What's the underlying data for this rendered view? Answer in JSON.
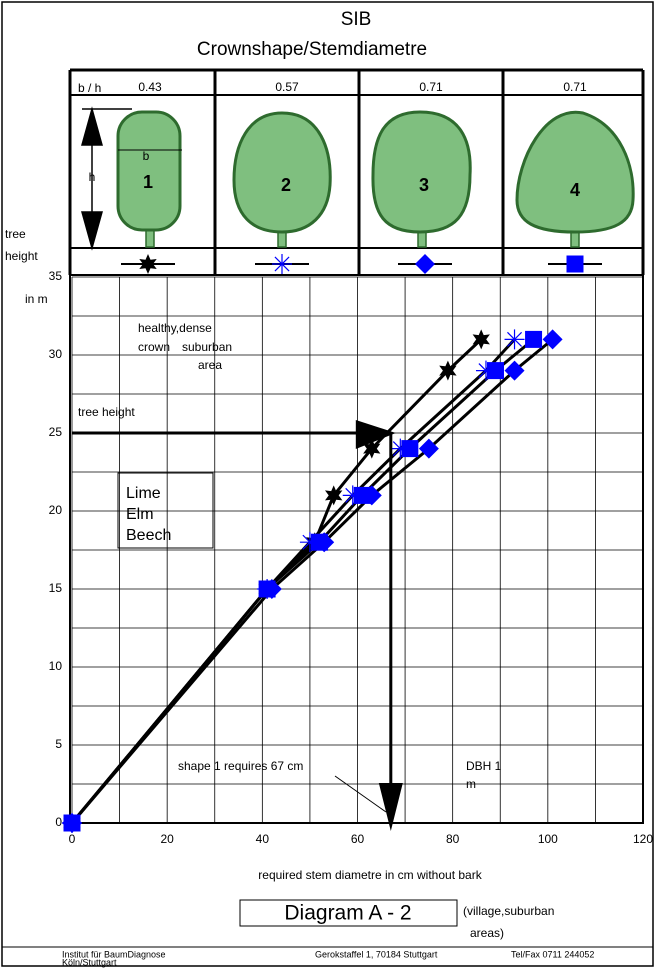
{
  "chart_data": {
    "type": "line",
    "title": "SIB",
    "subtitle": "Crownshape/Stemdiametre",
    "ratio_label": "b / h",
    "width_label": "b",
    "height_label": "h",
    "y_label": [
      "tree",
      "height",
      "in m"
    ],
    "x_label": "required stem diametre in cm without bark",
    "series": [
      {
        "name": "1",
        "ratio": 0.43,
        "marker": "star",
        "color": "#000000",
        "x": [
          0,
          41,
          51,
          55,
          63,
          79,
          86
        ],
        "values": [
          0,
          15,
          18,
          21,
          24,
          29,
          31
        ]
      },
      {
        "name": "2",
        "ratio": 0.57,
        "marker": "asterisk",
        "color": "#0000ff",
        "x": [
          0,
          41,
          50,
          59,
          69,
          87,
          93
        ],
        "values": [
          0,
          15,
          18,
          21,
          24,
          29,
          31
        ]
      },
      {
        "name": "3",
        "ratio": 0.71,
        "marker": "diamond",
        "color": "#0000ff",
        "x": [
          0,
          42,
          53,
          63,
          75,
          93,
          101
        ],
        "values": [
          0,
          15,
          18,
          21,
          24,
          29,
          31
        ]
      },
      {
        "name": "4",
        "ratio": 0.71,
        "marker": "square",
        "color": "#0000ff",
        "x": [
          0,
          41,
          52,
          61,
          71,
          89,
          97
        ],
        "values": [
          0,
          15,
          18,
          21,
          24,
          29,
          31
        ]
      }
    ],
    "xlim": [
      0,
      120
    ],
    "ylim": [
      0,
      35
    ],
    "xticks": [
      0,
      20,
      40,
      60,
      80,
      100,
      120
    ],
    "yticks": [
      0,
      5,
      10,
      15,
      20,
      25,
      30,
      35
    ],
    "xgrid": [
      0,
      10,
      20,
      30,
      40,
      50,
      60,
      70,
      80,
      90,
      100,
      110,
      120
    ],
    "ygrid": [
      0,
      2.5,
      5,
      7.5,
      10,
      12.5,
      15,
      17.5,
      20,
      22.5,
      25,
      27.5,
      30,
      32.5,
      35
    ],
    "grid": true,
    "notes": [
      "healthy,dense",
      "crown",
      "suburban",
      "area"
    ],
    "species": [
      "Lime",
      "Elm",
      "Beech"
    ],
    "arrow": {
      "label": "tree height",
      "y": 25,
      "x": 67
    },
    "arrow_note": "shape 1 requires 67 cm",
    "dbh_note": [
      "DBH 1",
      "m"
    ],
    "diagram_title": "Diagram A - 2",
    "diagram_note": [
      "(village,suburban",
      "areas)"
    ],
    "footer": [
      "Institut für BaumDiagnose",
      "Köln/Stuttgart",
      "Gerokstaffel 1, 70184 Stuttgart",
      "Tel/Fax 0711 244052"
    ]
  }
}
